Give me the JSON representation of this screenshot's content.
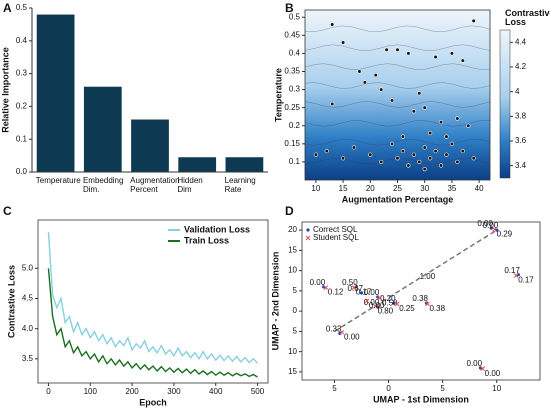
{
  "chart_data": [
    {
      "type": "bar",
      "panel": "A",
      "ylabel": "Relative Importance",
      "categories": [
        "Temperature",
        "Embedding Dim.",
        "Augmentation Percent",
        "Hidden Dim",
        "Learning Rate"
      ],
      "values": [
        0.48,
        0.26,
        0.16,
        0.045,
        0.045
      ],
      "color": "#0d3a52",
      "ylim": [
        0,
        0.5
      ],
      "yticks": [
        {
          "value": 0,
          "label": "0.0"
        },
        0.1,
        0.2,
        0.3,
        0.4,
        0.5
      ]
    },
    {
      "type": "contour",
      "panel": "B",
      "xlabel": "Augmentation Percentage",
      "ylabel": "Temperature",
      "colorbar_title": "Contrastive Loss",
      "x": [
        13,
        15,
        39,
        23,
        25,
        27,
        32,
        35,
        37,
        18,
        21,
        19,
        22,
        13,
        24,
        29,
        28,
        30,
        33,
        36,
        38,
        10,
        12,
        15,
        17,
        20,
        22,
        24,
        25,
        26,
        27,
        28,
        29,
        30,
        30,
        31,
        32,
        33,
        34,
        35,
        36,
        37,
        39,
        26,
        31,
        34
      ],
      "y": [
        0.48,
        0.43,
        0.49,
        0.41,
        0.41,
        0.4,
        0.39,
        0.4,
        0.38,
        0.35,
        0.34,
        0.32,
        0.3,
        0.26,
        0.27,
        0.29,
        0.24,
        0.25,
        0.21,
        0.22,
        0.2,
        0.12,
        0.13,
        0.11,
        0.14,
        0.12,
        0.1,
        0.15,
        0.11,
        0.13,
        0.09,
        0.12,
        0.1,
        0.14,
        0.08,
        0.11,
        0.13,
        0.09,
        0.12,
        0.15,
        0.1,
        0.13,
        0.11,
        0.17,
        0.18,
        0.17
      ],
      "xlim": [
        8,
        42
      ],
      "xticks": [
        10,
        15,
        20,
        25,
        30,
        35,
        40
      ],
      "ylim": [
        0.05,
        0.52
      ],
      "yticks": [
        0.1,
        0.15,
        0.2,
        0.25,
        0.3,
        0.35,
        0.4,
        0.45,
        0.5
      ],
      "zlim": [
        3.3,
        4.5
      ],
      "zticks": [
        3.4,
        3.6,
        3.8,
        4,
        4.2,
        4.4
      ]
    },
    {
      "type": "line",
      "panel": "C",
      "xlabel": "Epoch",
      "ylabel": "Contrastive Loss",
      "legend": "upper right",
      "x": [
        0,
        10,
        20,
        30,
        40,
        50,
        60,
        70,
        80,
        90,
        100,
        110,
        120,
        130,
        140,
        150,
        160,
        170,
        180,
        190,
        200,
        210,
        220,
        230,
        240,
        250,
        260,
        270,
        280,
        290,
        300,
        310,
        320,
        330,
        340,
        350,
        360,
        370,
        380,
        390,
        400,
        410,
        420,
        430,
        440,
        450,
        460,
        470,
        480,
        490,
        500
      ],
      "series": [
        {
          "name": "Validation Loss",
          "color": "#86d0e0",
          "values": [
            5.6,
            4.55,
            4.35,
            4.5,
            4.1,
            4.2,
            3.95,
            4.1,
            3.9,
            4.0,
            3.85,
            3.95,
            3.8,
            3.9,
            3.75,
            3.85,
            3.7,
            3.8,
            3.72,
            3.85,
            3.65,
            3.75,
            3.68,
            3.8,
            3.62,
            3.7,
            3.6,
            3.72,
            3.58,
            3.65,
            3.55,
            3.68,
            3.55,
            3.62,
            3.52,
            3.6,
            3.5,
            3.62,
            3.5,
            3.58,
            3.48,
            3.56,
            3.47,
            3.55,
            3.46,
            3.54,
            3.45,
            3.52,
            3.44,
            3.5,
            3.43
          ]
        },
        {
          "name": "Train Loss",
          "color": "#1b6e22",
          "values": [
            5.0,
            4.2,
            3.9,
            4.0,
            3.7,
            3.8,
            3.6,
            3.7,
            3.55,
            3.62,
            3.5,
            3.58,
            3.45,
            3.55,
            3.42,
            3.5,
            3.4,
            3.48,
            3.38,
            3.45,
            3.35,
            3.42,
            3.33,
            3.4,
            3.32,
            3.38,
            3.3,
            3.37,
            3.29,
            3.35,
            3.28,
            3.34,
            3.27,
            3.33,
            3.26,
            3.32,
            3.25,
            3.3,
            3.24,
            3.29,
            3.23,
            3.28,
            3.23,
            3.27,
            3.22,
            3.26,
            3.22,
            3.25,
            3.21,
            3.24,
            3.2
          ]
        }
      ],
      "xlim": [
        -25,
        525
      ],
      "xticks": [
        0,
        100,
        200,
        300,
        400,
        500
      ],
      "ylim": [
        3.1,
        5.8
      ],
      "yticks": [
        3.5,
        {
          "value": 4,
          "label": "4.0"
        },
        4.5,
        {
          "value": 5,
          "label": "5.0"
        }
      ]
    },
    {
      "type": "scatter",
      "panel": "D",
      "xlabel": "UMAP - 1st Dimension",
      "ylabel": "UMAP - 2nd Dimension",
      "legend": "upper left",
      "series": [
        {
          "name": "Correct SQL",
          "color": "#2a3cc4",
          "marker": "dot",
          "x": [
            9.5,
            10,
            -6,
            -3,
            -1,
            0.5,
            -1,
            3.5,
            12,
            -4.5,
            8.5,
            -2.5
          ],
          "values": [
            20.5,
            20,
            6,
            6,
            3.5,
            2,
            1,
            2,
            9,
            -5.5,
            -14,
            4.5
          ],
          "point_labels": [
            "0.00",
            "0.00",
            "0.00",
            "0.50",
            "0.00",
            "0.20",
            "0.00",
            "0.38",
            "0.17",
            "0.33",
            "0.00",
            "0.67"
          ]
        },
        {
          "name": "Student SQL",
          "color": "#e05050",
          "marker": "x",
          "x": [
            9.8,
            -5.8,
            -3.2,
            -0.8,
            0.8,
            -1.2,
            3.6,
            11.8,
            -4.3,
            8.7,
            -2
          ],
          "values": [
            20.2,
            5.8,
            5.8,
            3.2,
            1.8,
            1.2,
            1.8,
            8.8,
            -5.2,
            -14.2,
            2.5
          ],
          "point_labels": [
            "0.29",
            "0.12",
            "0.17",
            "0.50",
            "0.25",
            "0.80",
            "0.38",
            "0.17",
            "0.00",
            "0.00",
            "0.00"
          ]
        }
      ],
      "trend_line": {
        "x": [
          -5,
          10
        ],
        "y": [
          -5,
          20
        ],
        "label": "1.00"
      },
      "xlim": [
        -8,
        14
      ],
      "xticks": [
        {
          "value": -5,
          "label": "5"
        },
        0,
        5,
        10
      ],
      "ylim": [
        -17,
        22
      ],
      "yticks": [
        {
          "value": -15,
          "label": "15"
        },
        {
          "value": -10,
          "label": "10"
        },
        {
          "value": -5,
          "label": "5"
        },
        0,
        5,
        10,
        15,
        20
      ]
    }
  ]
}
